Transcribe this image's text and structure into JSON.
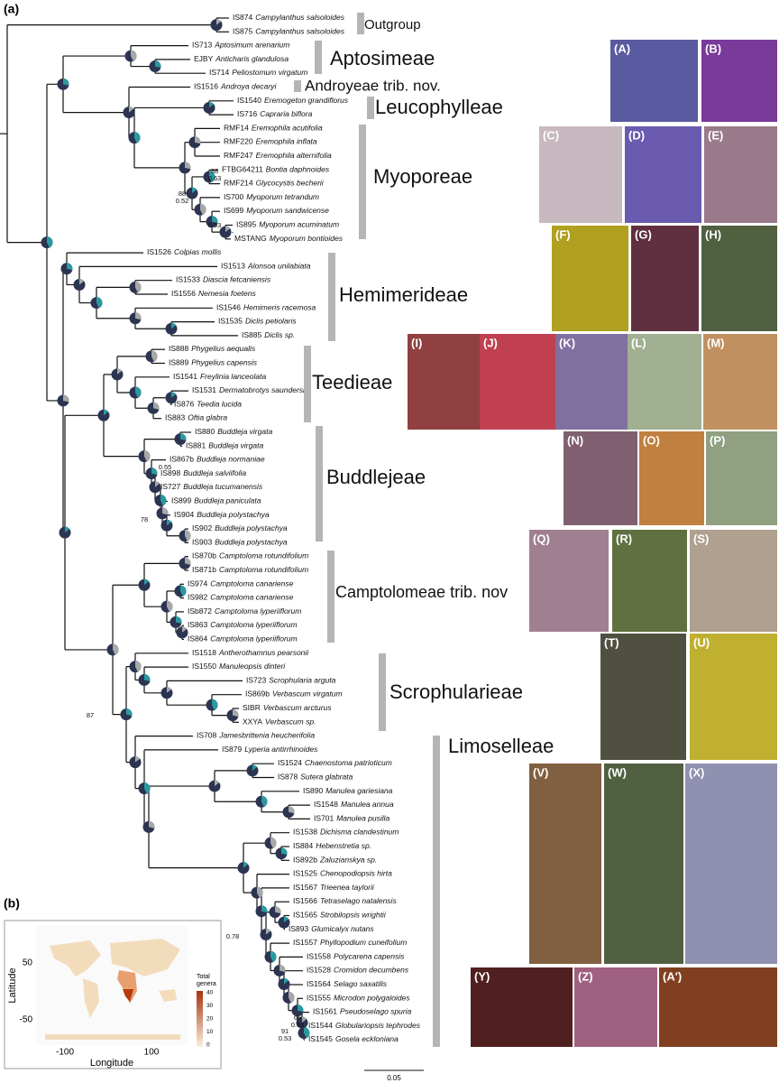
{
  "panel_label_a": "(a)",
  "panel_label_b": "(b)",
  "tips": [
    {
      "id": "IS874",
      "species": "Campylanthus salsoloides"
    },
    {
      "id": "IS875",
      "species": "Campylanthus salsoloides"
    },
    {
      "id": "IS713",
      "species": "Aptosimum arenarium"
    },
    {
      "id": "EJBY",
      "species": "Anticharis glandulosa"
    },
    {
      "id": "IS714",
      "species": "Peliostomum virgatum"
    },
    {
      "id": "IS1516",
      "species": "Androya decaryi"
    },
    {
      "id": "IS1540",
      "species": "Eremogeton grandiflorus"
    },
    {
      "id": "IS716",
      "species": "Capraria biflora"
    },
    {
      "id": "RMF14",
      "species": "Eremophila acutifolia"
    },
    {
      "id": "RMF220",
      "species": "Eremophila inflata"
    },
    {
      "id": "RMF247",
      "species": "Eremophila alternifolia"
    },
    {
      "id": "FTBG64211",
      "species": "Bontia daphnoides"
    },
    {
      "id": "RMF214",
      "species": "Glycocystis becherii"
    },
    {
      "id": "IS700",
      "species": "Myoporum tetrandum"
    },
    {
      "id": "IS699",
      "species": "Myoporum sandwicense"
    },
    {
      "id": "IS895",
      "species": "Myoporum acuminatum"
    },
    {
      "id": "MSTANG",
      "species": "Myoporum bontioides"
    },
    {
      "id": "IS1526",
      "species": "Colpias mollis"
    },
    {
      "id": "IS1513",
      "species": "Alonsoa unilabiata"
    },
    {
      "id": "IS1533",
      "species": "Diascia fetcaniensis"
    },
    {
      "id": "IS1556",
      "species": "Nemesia foetens"
    },
    {
      "id": "IS1546",
      "species": "Hemimeris racemosa"
    },
    {
      "id": "IS1535",
      "species": "Diclis petiolaris"
    },
    {
      "id": "IS885",
      "species": "Diclis sp."
    },
    {
      "id": "IS888",
      "species": "Phygelius aequalis"
    },
    {
      "id": "IS889",
      "species": "Phygelius capensis"
    },
    {
      "id": "IS1541",
      "species": "Freylinia lanceolata"
    },
    {
      "id": "IS1531",
      "species": "Dermatobrotys saundersii"
    },
    {
      "id": "IS876",
      "species": "Teedia lucida"
    },
    {
      "id": "IS883",
      "species": "Oftia glabra"
    },
    {
      "id": "IS880",
      "species": "Buddleja virgata"
    },
    {
      "id": "IS881",
      "species": "Buddleja virgata"
    },
    {
      "id": "IS867b",
      "species": "Buddleja normaniae"
    },
    {
      "id": "IS898",
      "species": "Buddleja salviifolia"
    },
    {
      "id": "IS727",
      "species": "Buddleja tucumanensis"
    },
    {
      "id": "IS899",
      "species": "Buddleja paniculata"
    },
    {
      "id": "IS904",
      "species": "Buddleja polystachya"
    },
    {
      "id": "IS902",
      "species": "Buddleja polystachya"
    },
    {
      "id": "IS903",
      "species": "Buddleja polystachya"
    },
    {
      "id": "IS870b",
      "species": "Camptoloma rotundifolium"
    },
    {
      "id": "IS871b",
      "species": "Camptoloma rotundifolium"
    },
    {
      "id": "IS974",
      "species": "Camptoloma canariense"
    },
    {
      "id": "IS982",
      "species": "Camptoloma canariense"
    },
    {
      "id": "ISb872",
      "species": "Camptoloma lyperiiflorum"
    },
    {
      "id": "IS863",
      "species": "Camptoloma lyperiiflorum"
    },
    {
      "id": "IS864",
      "species": "Camptoloma lyperiiflorum"
    },
    {
      "id": "IS1518",
      "species": "Antherothamnus pearsonii"
    },
    {
      "id": "IS1550",
      "species": "Manuleopsis dinteri"
    },
    {
      "id": "IS723",
      "species": "Scrophularia arguta"
    },
    {
      "id": "IS869b",
      "species": "Verbascum virgatum"
    },
    {
      "id": "SIBR",
      "species": "Verbascum arcturus"
    },
    {
      "id": "XXYA",
      "species": "Verbascum sp."
    },
    {
      "id": "IS708",
      "species": "Jamesbrittenia heucherifolia"
    },
    {
      "id": "IS879",
      "species": "Lyperia antirrhinoides"
    },
    {
      "id": "IS1524",
      "species": "Chaenostoma patrioticum"
    },
    {
      "id": "IS878",
      "species": "Sutera glabrata"
    },
    {
      "id": "IS890",
      "species": "Manulea gariesiana"
    },
    {
      "id": "IS1548",
      "species": "Manulea annua"
    },
    {
      "id": "IS701",
      "species": "Manulea pusilla"
    },
    {
      "id": "IS1538",
      "species": "Dichisma clandestinum"
    },
    {
      "id": "IS884",
      "species": "Hebenstretia sp."
    },
    {
      "id": "IS892b",
      "species": "Zaluzianskya sp."
    },
    {
      "id": "IS1525",
      "species": "Chenopodiopsis hirta"
    },
    {
      "id": "IS1567",
      "species": "Trieenea taylorii"
    },
    {
      "id": "IS1566",
      "species": "Tetraselago natalensis"
    },
    {
      "id": "IS1565",
      "species": "Strobilopsis wrightii"
    },
    {
      "id": "IS893",
      "species": "Glumicalyx nutans"
    },
    {
      "id": "IS1557",
      "species": "Phyllopodium cuneifolium"
    },
    {
      "id": "IS1558",
      "species": "Polycarena capensis"
    },
    {
      "id": "IS1528",
      "species": "Cromidon decumbens"
    },
    {
      "id": "IS1564",
      "species": "Selago saxatilis"
    },
    {
      "id": "IS1555",
      "species": "Microdon polygaloides"
    },
    {
      "id": "IS1561",
      "species": "Pseudoselago spuria"
    },
    {
      "id": "IS1544",
      "species": "Globulariopsis tephrodes"
    },
    {
      "id": "IS1545",
      "species": "Gosela eckloniana"
    }
  ],
  "clades": [
    "Outgroup",
    "Aptosimeae",
    "Androyeae trib. nov.",
    "Leucophylleae",
    "Myoporeae",
    "Hemimerideae",
    "Teedieae",
    "Buddlejeae",
    "Camptolomeae trib. nov",
    "Scrophularieae",
    "Limoselleae"
  ],
  "support_values": [
    "88",
    "0.63",
    "88",
    "0.52",
    "0.93",
    "-",
    "0.55",
    "78",
    "87",
    "0.78",
    "65",
    "0.53",
    "91",
    "0.53"
  ],
  "photos": [
    "(A)",
    "(B)",
    "(C)",
    "(D)",
    "(E)",
    "(F)",
    "(G)",
    "(H)",
    "(I)",
    "(J)",
    "(K)",
    "(L)",
    "(M)",
    "(N)",
    "(O)",
    "(P)",
    "(Q)",
    "(R)",
    "(S)",
    "(T)",
    "(U)",
    "(V)",
    "(W)",
    "(X)",
    "(Y)",
    "(Z)",
    "(A′)"
  ],
  "scale_bar": "0.05",
  "map": {
    "x_label": "Longitude",
    "y_label": "Latitude",
    "x_ticks": [
      "-100",
      "100"
    ],
    "y_ticks": [
      "50",
      "-50"
    ],
    "legend_title": [
      "Total",
      "genera"
    ],
    "legend_ticks": [
      "40",
      "30",
      "20",
      "10",
      "0"
    ]
  }
}
